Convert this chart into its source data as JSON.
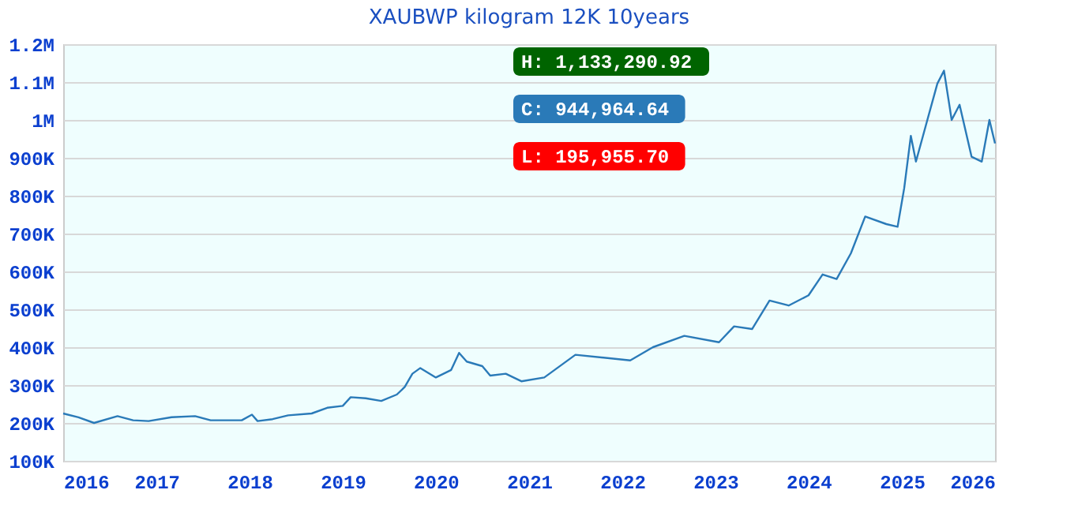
{
  "chart_data": {
    "type": "line",
    "title": "XAUBWP kilogram 12K 10years",
    "x": [
      "2016-01-01",
      "2016-03-01",
      "2016-05-01",
      "2016-08-01",
      "2016-10-01",
      "2016-12-01",
      "2017-03-01",
      "2017-06-01",
      "2017-08-01",
      "2017-12-01",
      "2018-01-10",
      "2018-02-01",
      "2018-04-01",
      "2018-06-01",
      "2018-09-01",
      "2018-11-01",
      "2019-01-01",
      "2019-02-01",
      "2019-04-01",
      "2019-06-01",
      "2019-08-01",
      "2019-09-01",
      "2019-10-01",
      "2019-11-01",
      "2020-01-01",
      "2020-03-01",
      "2020-04-01",
      "2020-05-01",
      "2020-07-01",
      "2020-08-01",
      "2020-10-01",
      "2020-12-01",
      "2021-03-01",
      "2021-07-01",
      "2022-02-01",
      "2022-05-01",
      "2022-09-01",
      "2023-01-15",
      "2023-03-15",
      "2023-05-25",
      "2023-08-01",
      "2023-10-15",
      "2024-01-01",
      "2024-02-25",
      "2024-04-20",
      "2024-06-15",
      "2024-08-10",
      "2024-11-01",
      "2024-12-15",
      "2025-01-10",
      "2025-02-05",
      "2025-02-25",
      "2025-04-05",
      "2025-05-20",
      "2025-06-15",
      "2025-07-15",
      "2025-08-15",
      "2025-10-01",
      "2025-11-10",
      "2025-12-10",
      "2026-01-01"
    ],
    "series": [
      {
        "color": "#2a7ab8",
        "values": [
          225000,
          215000,
          200000,
          218000,
          207000,
          205000,
          215000,
          218000,
          207000,
          207000,
          222000,
          205000,
          210000,
          220000,
          225000,
          240000,
          245000,
          268000,
          265000,
          258000,
          275000,
          295000,
          330000,
          345000,
          320000,
          340000,
          385000,
          362000,
          350000,
          325000,
          330000,
          310000,
          320000,
          380000,
          365000,
          400000,
          430000,
          413000,
          455000,
          448000,
          523000,
          510000,
          537000,
          592000,
          580000,
          648000,
          745000,
          725000,
          718000,
          820000,
          958000,
          890000,
          986000,
          1096000,
          1130000,
          1000000,
          1040000,
          903000,
          890000,
          1000000,
          938000
        ]
      }
    ],
    "xlim": [
      "2016-01-01",
      "2026-01-01"
    ],
    "xticks": [
      "2016",
      "2017",
      "2018",
      "2019",
      "2020",
      "2021",
      "2022",
      "2023",
      "2024",
      "2025",
      "2026"
    ],
    "ylim": [
      100000,
      1200000
    ],
    "yticks": [
      {
        "value": 100000,
        "label": "100K"
      },
      {
        "value": 200000,
        "label": "200K"
      },
      {
        "value": 300000,
        "label": "300K"
      },
      {
        "value": 400000,
        "label": "400K"
      },
      {
        "value": 500000,
        "label": "500K"
      },
      {
        "value": 600000,
        "label": "600K"
      },
      {
        "value": 700000,
        "label": "700K"
      },
      {
        "value": 800000,
        "label": "800K"
      },
      {
        "value": 900000,
        "label": "900K"
      },
      {
        "value": 1000000,
        "label": "1M"
      },
      {
        "value": 1100000,
        "label": "1.1M"
      },
      {
        "value": 1200000,
        "label": "1.2M"
      }
    ],
    "grid": "y",
    "annotations": [
      "H: 1,133,290.92",
      "C: 944,964.64",
      "L: 195,955.70"
    ]
  }
}
